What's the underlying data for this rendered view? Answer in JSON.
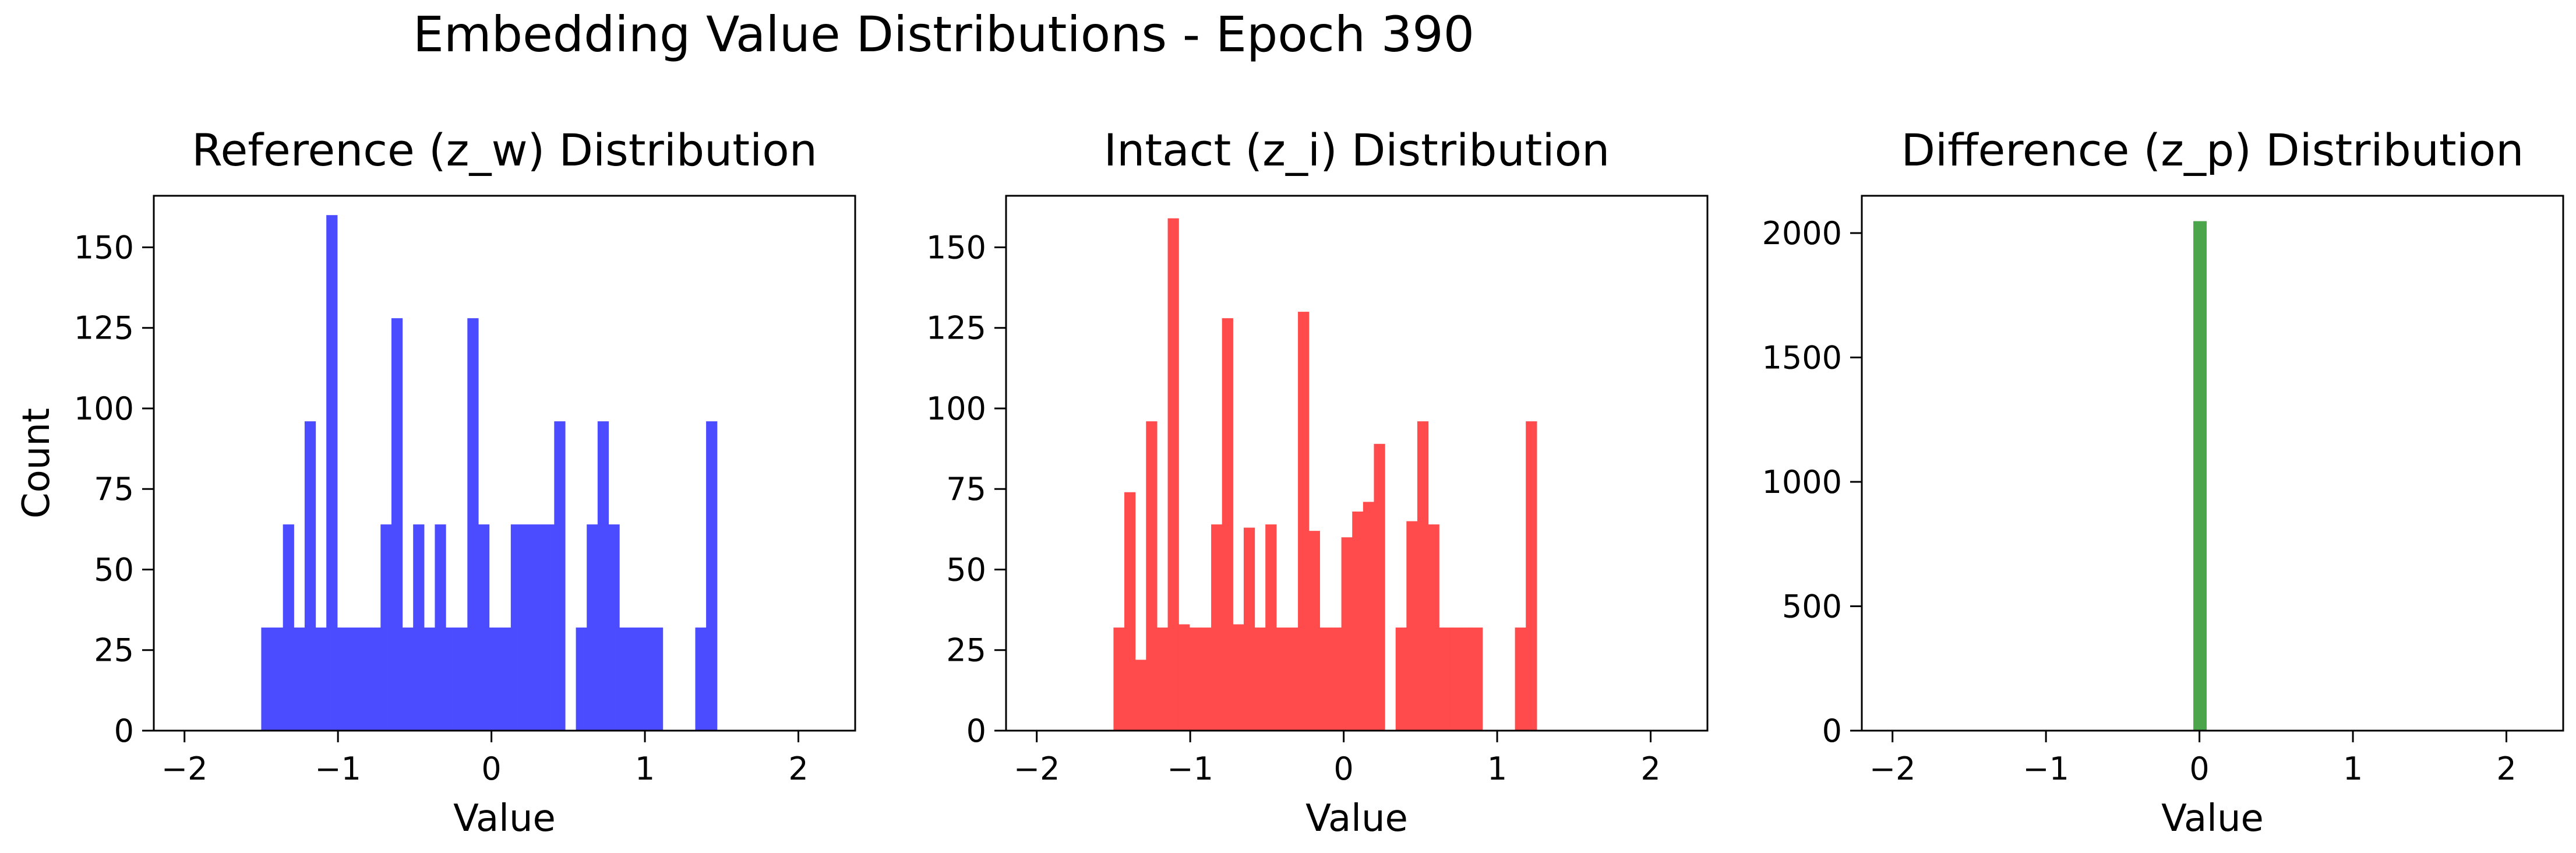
{
  "figure": {
    "suptitle": "Embedding Value Distributions - Epoch 390"
  },
  "chart_data": [
    {
      "type": "histogram",
      "title": "Reference (z_w) Distribution",
      "xlabel": "Value",
      "ylabel": "Count",
      "color": "#4b4bff",
      "xlim": [
        -2.2,
        2.37
      ],
      "ylim": [
        0,
        166
      ],
      "xticks": [
        -2,
        -1,
        0,
        1,
        2
      ],
      "yticks": [
        0,
        25,
        50,
        75,
        100,
        125,
        150
      ],
      "xtick_labels": [
        "−2",
        "−1",
        "0",
        "1",
        "2"
      ],
      "ytick_labels": [
        "0",
        "25",
        "50",
        "75",
        "100",
        "125",
        "150"
      ],
      "bins": {
        "start": -1.5,
        "width": 0.0707
      },
      "values": [
        32,
        32,
        64,
        32,
        96,
        32,
        160,
        32,
        32,
        32,
        32,
        64,
        128,
        32,
        64,
        32,
        64,
        32,
        32,
        128,
        64,
        32,
        32,
        64,
        64,
        64,
        64,
        96,
        0,
        32,
        64,
        96,
        64,
        32,
        32,
        32,
        32,
        0,
        0,
        0,
        32,
        96
      ]
    },
    {
      "type": "histogram",
      "title": "Intact (z_i) Distribution",
      "xlabel": "Value",
      "ylabel": "",
      "color": "#ff4b4b",
      "xlim": [
        -2.2,
        2.37
      ],
      "ylim": [
        0,
        166
      ],
      "xticks": [
        -2,
        -1,
        0,
        1,
        2
      ],
      "yticks": [
        0,
        25,
        50,
        75,
        100,
        125,
        150
      ],
      "xtick_labels": [
        "−2",
        "−1",
        "0",
        "1",
        "2"
      ],
      "ytick_labels": [
        "0",
        "25",
        "50",
        "75",
        "100",
        "125",
        "150"
      ],
      "bins": {
        "start": -1.5,
        "width": 0.0707
      },
      "values": [
        32,
        74,
        22,
        96,
        32,
        159,
        33,
        32,
        32,
        64,
        128,
        33,
        63,
        32,
        64,
        32,
        32,
        130,
        62,
        32,
        32,
        60,
        68,
        71,
        89,
        0,
        32,
        65,
        96,
        64,
        32,
        32,
        32,
        32,
        0,
        0,
        0,
        32,
        96
      ]
    },
    {
      "type": "histogram",
      "title": "Difference (z_p) Distribution",
      "xlabel": "Value",
      "ylabel": "",
      "color": "#4ba64b",
      "xlim": [
        -2.2,
        2.37
      ],
      "ylim": [
        0,
        2150
      ],
      "xticks": [
        -2,
        -1,
        0,
        1,
        2
      ],
      "yticks": [
        0,
        500,
        1000,
        1500,
        2000
      ],
      "xtick_labels": [
        "−2",
        "−1",
        "0",
        "1",
        "2"
      ],
      "ytick_labels": [
        "0",
        "500",
        "1000",
        "1500",
        "2000"
      ],
      "bins": {
        "start": -0.04,
        "width": 0.085
      },
      "values": [
        2048
      ]
    }
  ]
}
